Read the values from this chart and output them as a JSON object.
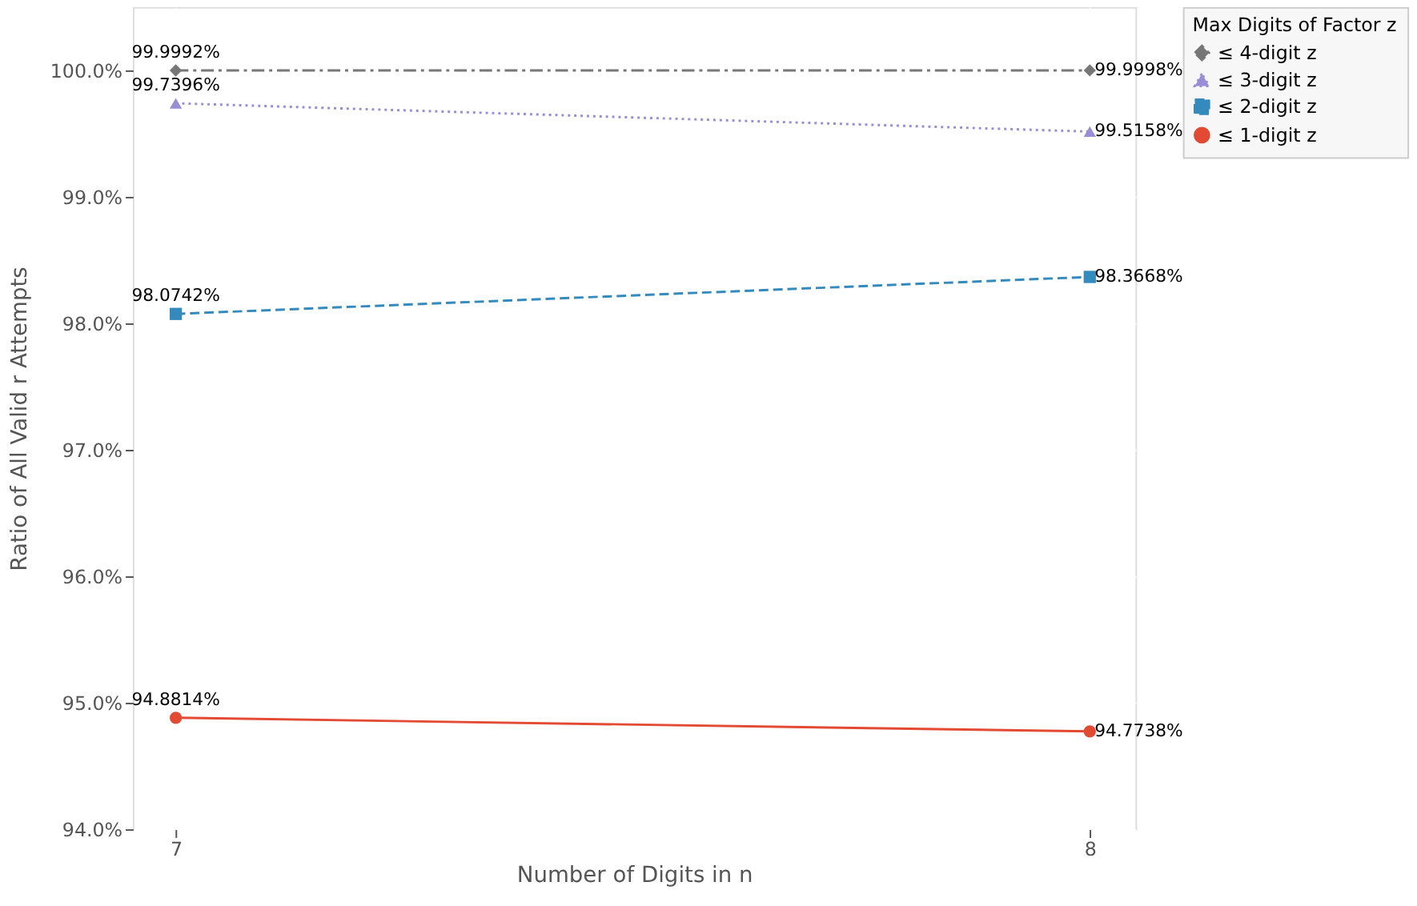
{
  "chart_data": {
    "type": "line",
    "xlabel": "Number of Digits in n",
    "ylabel": "Ratio of All Valid r Attempts",
    "legend_title": "Max Digits of Factor z",
    "legend": "top right",
    "grid": true,
    "x": [
      7,
      8
    ],
    "xlim": [
      6.953,
      8.05
    ],
    "xticks": [
      7,
      8
    ],
    "ylim": [
      94.0,
      100.5
    ],
    "yticks": [
      {
        "value": 94,
        "label": "94.0%"
      },
      {
        "value": 95,
        "label": "95.0%"
      },
      {
        "value": 96,
        "label": "96.0%"
      },
      {
        "value": 97,
        "label": "97.0%"
      },
      {
        "value": 98,
        "label": "98.0%"
      },
      {
        "value": 99,
        "label": "99.0%"
      },
      {
        "value": 100,
        "label": "100.0%"
      }
    ],
    "series": [
      {
        "name": "≤ 4-digit z",
        "color": "#777777",
        "marker": "diamond",
        "line_style": "dashdot",
        "values": [
          99.9992,
          99.9998
        ],
        "value_labels": [
          "99.9992%",
          "99.9998%"
        ]
      },
      {
        "name": "≤ 3-digit z",
        "color": "#988ed5",
        "marker": "triangle",
        "line_style": "dotted",
        "values": [
          99.7396,
          99.5158
        ],
        "value_labels": [
          "99.7396%",
          "99.5158%"
        ]
      },
      {
        "name": "≤ 2-digit z",
        "color": "#348abd",
        "marker": "square",
        "line_style": "dashed",
        "values": [
          98.0742,
          98.3668
        ],
        "value_labels": [
          "98.0742%",
          "98.3668%"
        ]
      },
      {
        "name": "≤ 1-digit z",
        "color": "#e24a33",
        "marker": "circle",
        "line_style": "solid",
        "values": [
          94.8814,
          94.7738
        ],
        "value_labels": [
          "94.8814%",
          "94.7738%"
        ]
      }
    ]
  }
}
